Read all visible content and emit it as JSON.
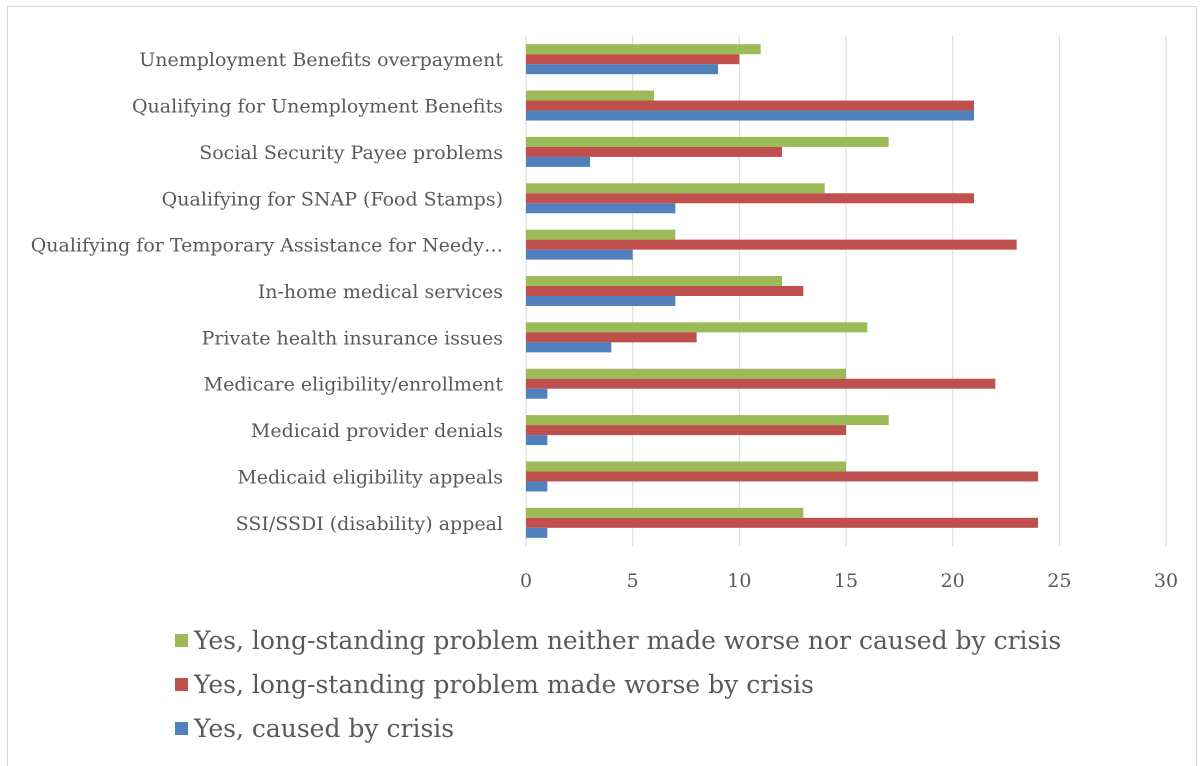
{
  "chart_data": {
    "type": "bar",
    "orientation": "horizontal",
    "categories": [
      "Unemployment Benefits overpayment",
      "Qualifying for Unemployment Benefits",
      "Social Security Payee problems",
      "Qualifying for SNAP (Food Stamps)",
      "Qualifying for Temporary Assistance for Needy…",
      "In-home medical services",
      "Private health insurance issues",
      "Medicare eligibility/enrollment",
      "Medicaid provider denials",
      "Medicaid eligibility appeals",
      "SSI/SSDI (disability) appeal"
    ],
    "series": [
      {
        "name": "Yes, long-standing problem neither made worse nor caused by crisis",
        "color": "#9bbb59",
        "values": [
          11,
          6,
          17,
          14,
          7,
          12,
          16,
          15,
          17,
          15,
          13
        ]
      },
      {
        "name": "Yes, long-standing problem made worse by crisis",
        "color": "#c0504d",
        "values": [
          10,
          21,
          12,
          21,
          23,
          13,
          8,
          22,
          15,
          24,
          24
        ]
      },
      {
        "name": "Yes, caused by crisis",
        "color": "#4f81bd",
        "values": [
          9,
          21,
          3,
          7,
          5,
          7,
          4,
          1,
          1,
          1,
          1
        ]
      }
    ],
    "xlim": [
      0,
      30
    ],
    "xticks": [
      "0",
      "5",
      "10",
      "15",
      "20",
      "25",
      "30"
    ],
    "grid": true,
    "legend_position": "bottom",
    "title": "",
    "xlabel": "",
    "ylabel": ""
  }
}
